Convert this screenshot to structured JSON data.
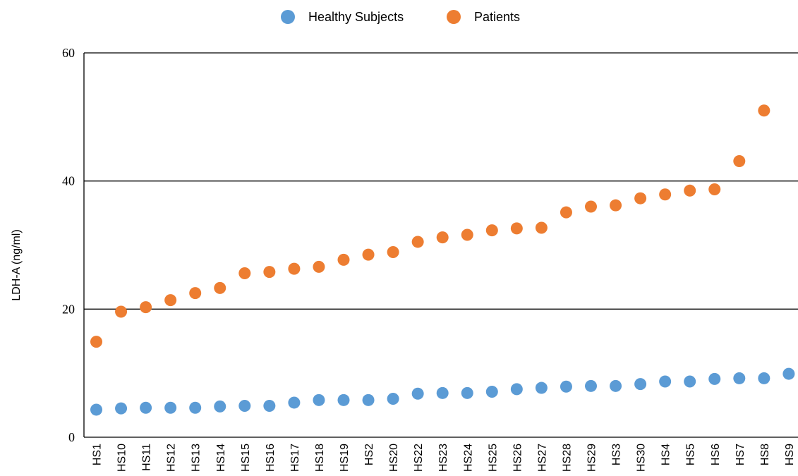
{
  "chart_data": {
    "type": "scatter",
    "title": "",
    "xlabel": "",
    "ylabel": "LDH-A (ng/ml)",
    "ylim": [
      0,
      60
    ],
    "yticks": [
      0,
      20,
      40,
      60
    ],
    "grid": "horizontal lines at y ticks",
    "legend": "top-center",
    "categories": [
      "HS1",
      "HS10",
      "HS11",
      "HS12",
      "HS13",
      "HS14",
      "HS15",
      "HS16",
      "HS17",
      "HS18",
      "HS19",
      "HS2",
      "HS20",
      "HS22",
      "HS23",
      "HS24",
      "HS25",
      "HS26",
      "HS27",
      "HS28",
      "HS29",
      "HS3",
      "HS30",
      "HS4",
      "HS5",
      "HS6",
      "HS7",
      "HS8",
      "HS9"
    ],
    "series": [
      {
        "name": "Healthy Subjects",
        "color": "#5b9bd5",
        "values": [
          4.3,
          4.5,
          4.6,
          4.6,
          4.6,
          4.8,
          4.9,
          4.9,
          5.4,
          5.8,
          5.8,
          5.8,
          6.0,
          6.8,
          6.9,
          6.9,
          7.1,
          7.5,
          7.7,
          7.9,
          8.0,
          8.0,
          8.3,
          8.7,
          8.7,
          9.1,
          9.2,
          9.2,
          9.9
        ]
      },
      {
        "name": "Patients",
        "color": "#ed7d31",
        "values": [
          14.9,
          19.6,
          20.3,
          21.4,
          22.5,
          23.3,
          25.6,
          25.8,
          26.3,
          26.6,
          27.7,
          28.5,
          28.9,
          30.5,
          31.2,
          31.6,
          32.3,
          32.6,
          32.7,
          35.1,
          36.0,
          36.2,
          37.3,
          37.9,
          38.5,
          38.7,
          43.1,
          51.0
        ]
      }
    ]
  }
}
